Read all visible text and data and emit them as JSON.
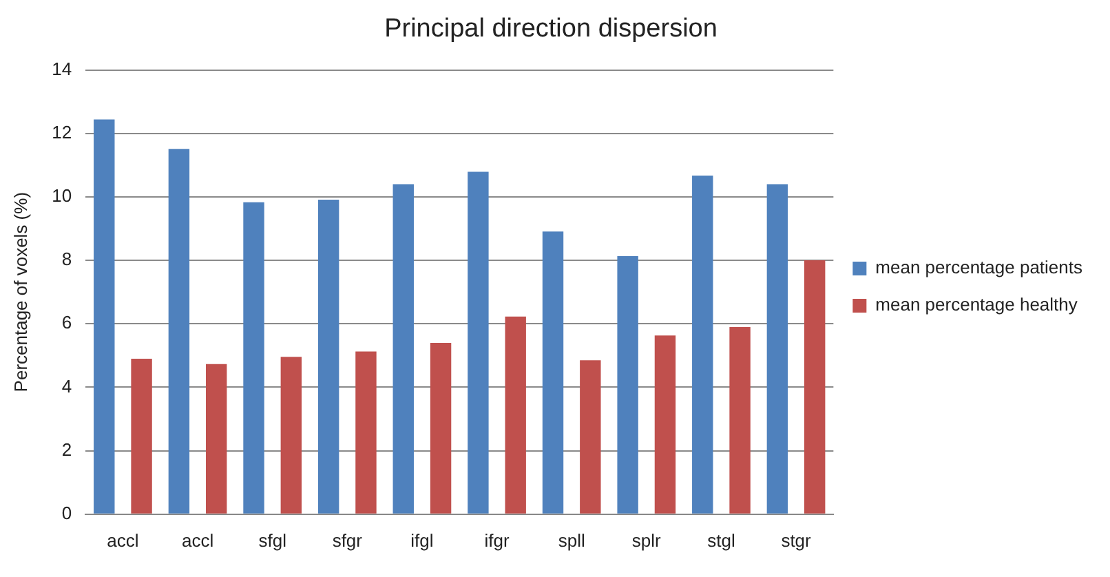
{
  "chart_data": {
    "type": "bar",
    "title": "Principal direction dispersion",
    "ylabel": "Percentage of voxels (%)",
    "categories": [
      "accl",
      "accl",
      "sfgl",
      "sfgr",
      "ifgl",
      "ifgr",
      "spll",
      "splr",
      "stgl",
      "stgr"
    ],
    "series": [
      {
        "name": "mean percentage patients",
        "color": "#4f81bd",
        "values": [
          12.44,
          11.51,
          9.83,
          9.91,
          10.4,
          10.79,
          8.91,
          8.13,
          10.67,
          10.4
        ]
      },
      {
        "name": "mean percentage healthy",
        "color": "#c0504d",
        "values": [
          4.9,
          4.73,
          4.96,
          5.13,
          5.4,
          6.23,
          4.85,
          5.63,
          5.9,
          8.0
        ]
      }
    ],
    "ylim": [
      0,
      14
    ],
    "yticks": [
      0,
      2,
      4,
      6,
      8,
      10,
      12,
      14
    ],
    "grid": "y",
    "legend": "right"
  }
}
